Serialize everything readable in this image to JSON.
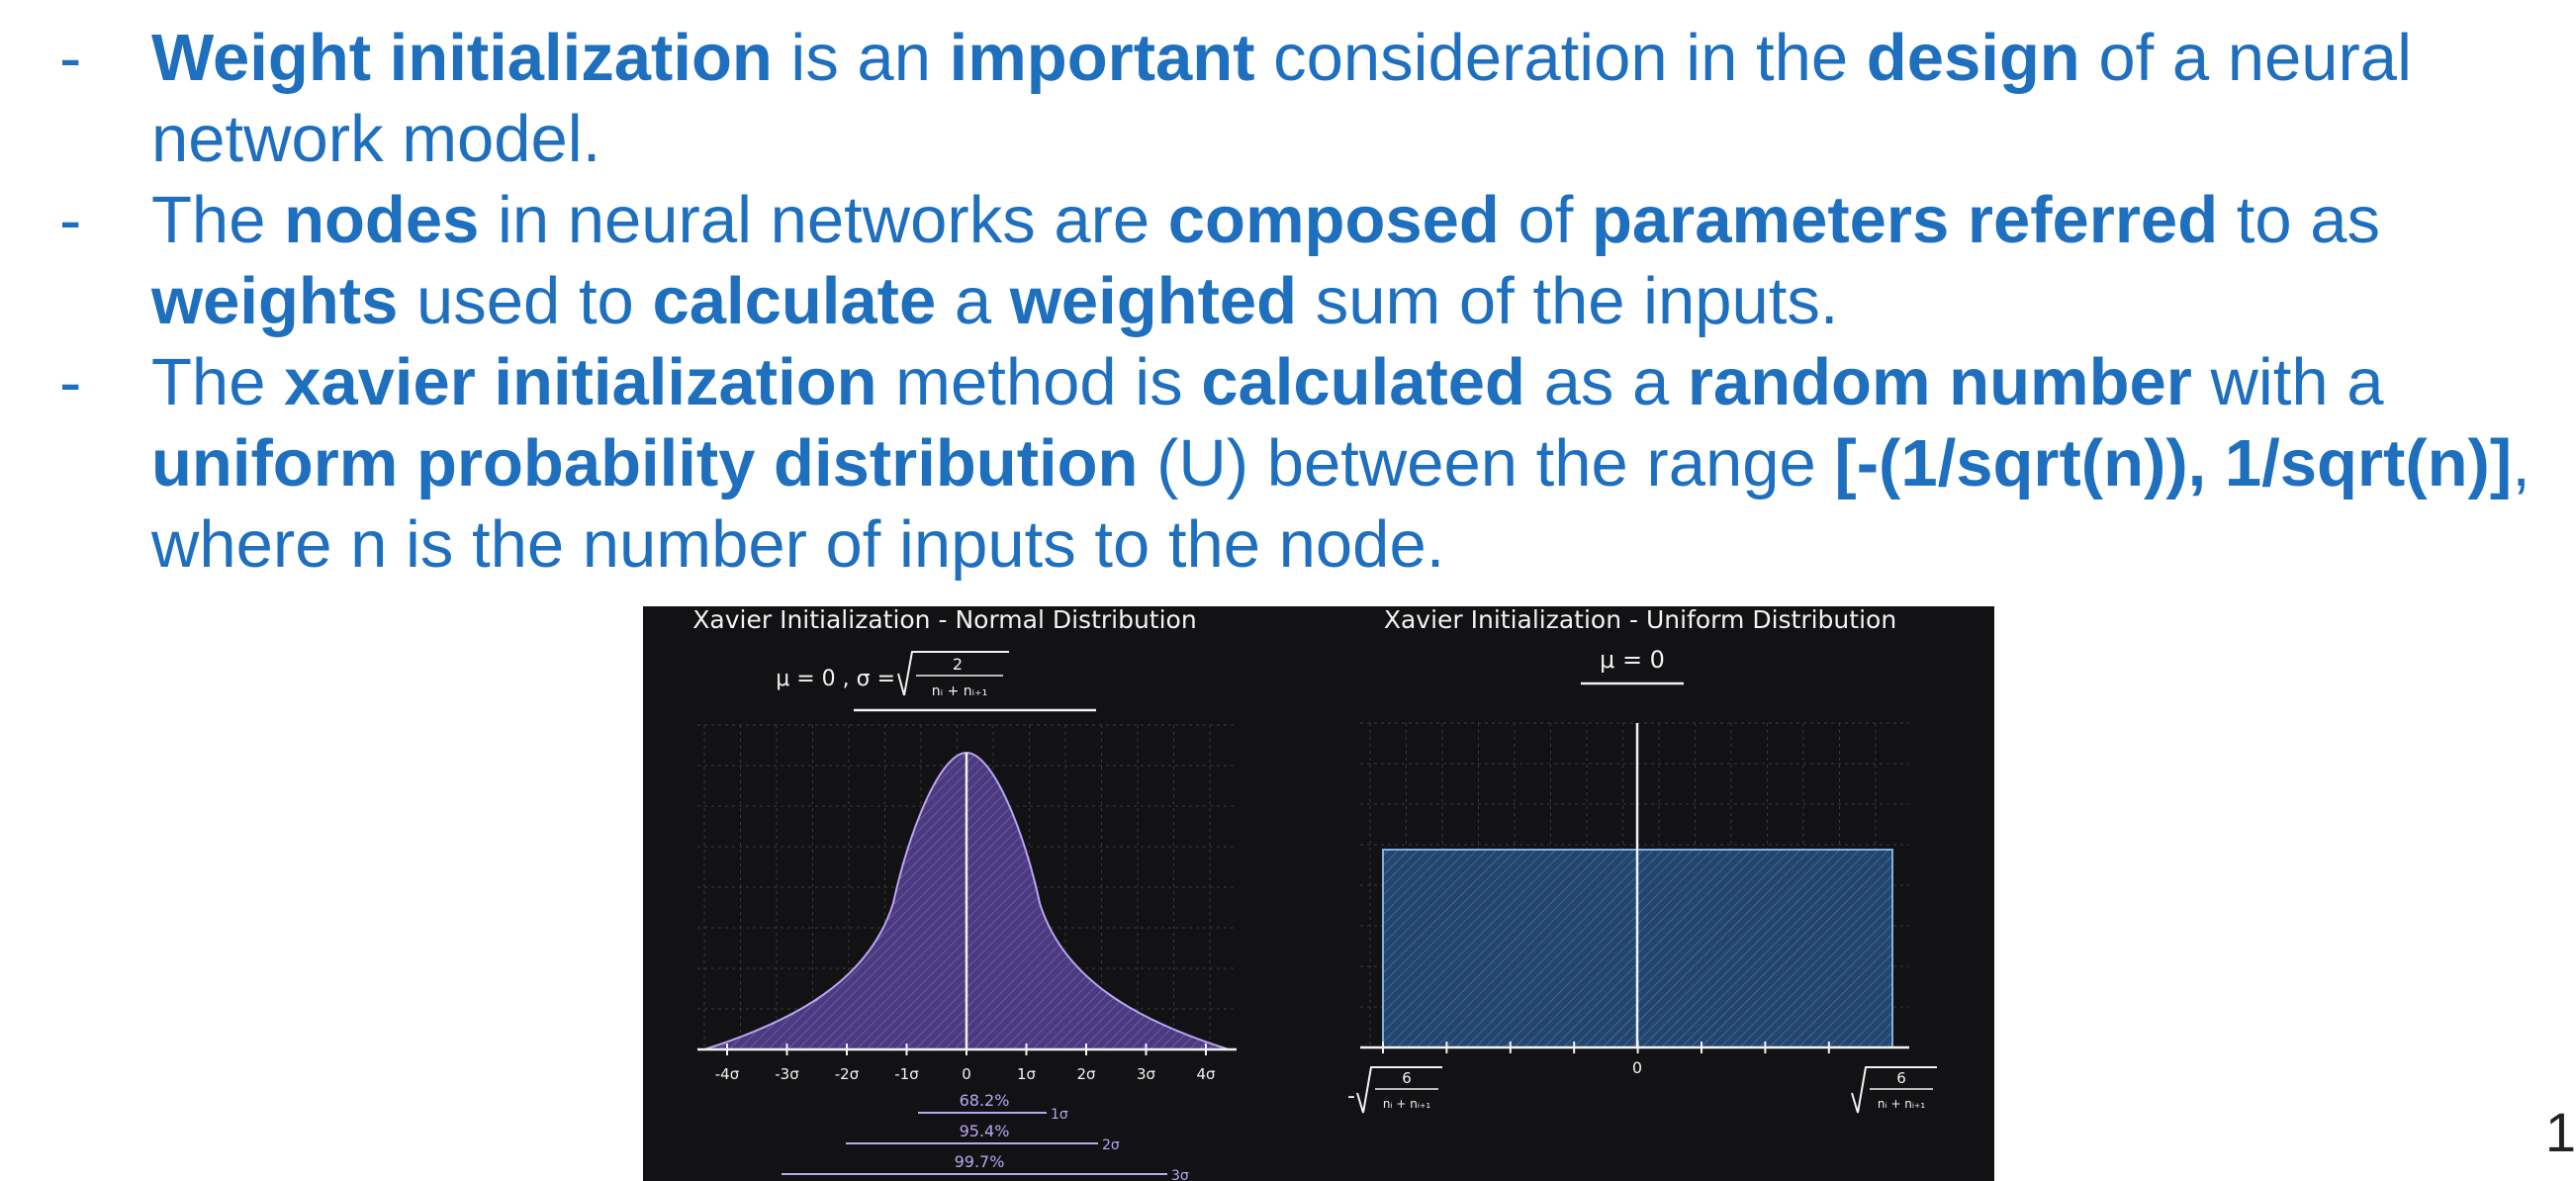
{
  "bullets": [
    {
      "marker": "-",
      "segments": [
        {
          "t": "Weight initialization",
          "b": true
        },
        {
          "t": " is an ",
          "b": false
        },
        {
          "t": "important",
          "b": true
        },
        {
          "t": " consideration in the ",
          "b": false
        },
        {
          "t": "design",
          "b": true
        },
        {
          "t": " of a neural network model.",
          "b": false
        }
      ]
    },
    {
      "marker": "-",
      "segments": [
        {
          "t": "The ",
          "b": false
        },
        {
          "t": "nodes",
          "b": true
        },
        {
          "t": " in neural networks are ",
          "b": false
        },
        {
          "t": "composed",
          "b": true
        },
        {
          "t": " of ",
          "b": false
        },
        {
          "t": "parameters referred",
          "b": true
        },
        {
          "t": " to as ",
          "b": false
        },
        {
          "t": "weights",
          "b": true
        },
        {
          "t": " used to ",
          "b": false
        },
        {
          "t": "calculate",
          "b": true
        },
        {
          "t": " a ",
          "b": false
        },
        {
          "t": "weighted",
          "b": true
        },
        {
          "t": " sum of the inputs.",
          "b": false
        }
      ]
    },
    {
      "marker": "-",
      "segments": [
        {
          "t": "The ",
          "b": false
        },
        {
          "t": "xavier initialization",
          "b": true
        },
        {
          "t": " method is ",
          "b": false
        },
        {
          "t": "calculated",
          "b": true
        },
        {
          "t": " as a ",
          "b": false
        },
        {
          "t": "random number",
          "b": true
        },
        {
          "t": " with a ",
          "b": false
        },
        {
          "t": "uniform probability distribution",
          "b": true
        },
        {
          "t": " (U) between the range ",
          "b": false
        },
        {
          "t": "[-(1/sqrt(n)), 1/sqrt(n)]",
          "b": true
        },
        {
          "t": ", where n is the number of inputs to the node.",
          "b": false
        }
      ]
    }
  ],
  "page_number": "1",
  "figure": {
    "left_title": "Xavier Initialization - Normal Distribution",
    "left_formula_mu": "μ = 0 , σ =",
    "left_formula_num": "2",
    "left_formula_den": "nᵢ + nᵢ₊₁",
    "left_ticks": [
      "-4σ",
      "-3σ",
      "-2σ",
      "-1σ",
      "0",
      "1σ",
      "2σ",
      "3σ",
      "4σ"
    ],
    "pct_68": "68.2%",
    "pct_95": "95.4%",
    "pct_99": "99.7%",
    "span_1": "1σ",
    "span_2": "2σ",
    "span_3": "3σ",
    "right_title": "Xavier Initialization - Uniform Distribution",
    "right_formula_mu": "μ = 0",
    "right_zero": "0",
    "right_num": "6",
    "right_den": "nᵢ + nᵢ₊₁",
    "minus_sign": "-",
    "colors": {
      "text": "#1f6fbf",
      "normal_fill": "#6b57a8",
      "uniform_fill": "#2f5a8a",
      "bg": "#121214"
    }
  }
}
